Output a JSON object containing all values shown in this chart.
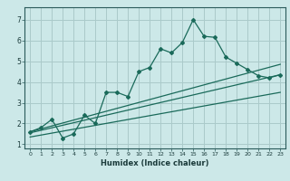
{
  "xlabel": "Humidex (Indice chaleur)",
  "bg_color": "#cce8e8",
  "grid_color": "#aacaca",
  "line_color": "#1a6a5a",
  "xlim": [
    -0.5,
    23.5
  ],
  "ylim": [
    0.8,
    7.6
  ],
  "xticks": [
    0,
    1,
    2,
    3,
    4,
    5,
    6,
    7,
    8,
    9,
    10,
    11,
    12,
    13,
    14,
    15,
    16,
    17,
    18,
    19,
    20,
    21,
    22,
    23
  ],
  "yticks": [
    1,
    2,
    3,
    4,
    5,
    6,
    7
  ],
  "main_x": [
    0,
    1,
    2,
    3,
    4,
    5,
    6,
    7,
    8,
    9,
    10,
    11,
    12,
    13,
    14,
    15,
    16,
    17,
    18,
    19,
    20,
    21,
    22,
    23
  ],
  "main_y": [
    1.6,
    1.8,
    2.2,
    1.3,
    1.5,
    2.4,
    2.0,
    3.5,
    3.5,
    3.3,
    4.5,
    4.7,
    5.6,
    5.4,
    5.9,
    7.0,
    6.2,
    6.15,
    5.2,
    4.9,
    4.6,
    4.3,
    4.2,
    4.35
  ],
  "line1_x": [
    0,
    23
  ],
  "line1_y": [
    1.55,
    4.35
  ],
  "line2_x": [
    0,
    23
  ],
  "line2_y": [
    1.35,
    3.5
  ],
  "line3_x": [
    0,
    23
  ],
  "line3_y": [
    1.6,
    4.85
  ]
}
